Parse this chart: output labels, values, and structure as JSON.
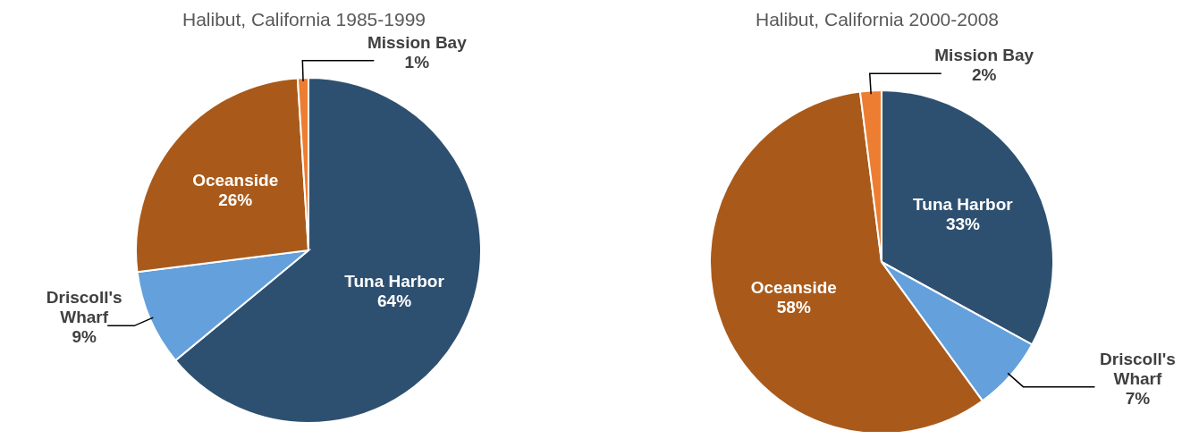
{
  "chart_data": [
    {
      "type": "pie",
      "title": "Halibut, California 1985-1999",
      "categories": [
        "Tuna Harbor",
        "Driscoll's Wharf",
        "Oceanside",
        "Mission Bay"
      ],
      "values": [
        64,
        9,
        26,
        1
      ],
      "value_labels": [
        "64%",
        "9%",
        "26%",
        "1%"
      ],
      "colors": [
        "#2e5070",
        "#63a0dc",
        "#a95a1a",
        "#ed7d31"
      ]
    },
    {
      "type": "pie",
      "title": "Halibut, California 2000-2008",
      "categories": [
        "Tuna Harbor",
        "Driscoll's Wharf",
        "Oceanside",
        "Mission Bay"
      ],
      "values": [
        33,
        7,
        58,
        2
      ],
      "value_labels": [
        "33%",
        "7%",
        "58%",
        "2%"
      ],
      "colors": [
        "#2e5070",
        "#63a0dc",
        "#a95a1a",
        "#ed7d31"
      ]
    }
  ]
}
